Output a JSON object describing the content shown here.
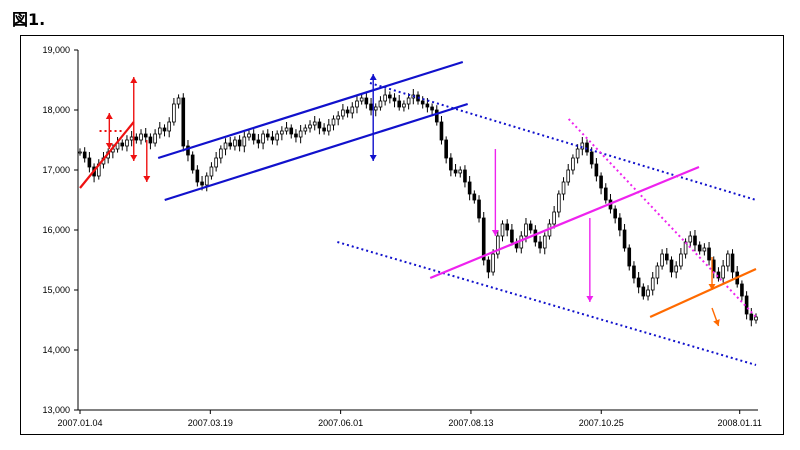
{
  "figure_label": "図1.",
  "chart_data": {
    "type": "candlestick",
    "title": "",
    "xlabel": "",
    "ylabel": "",
    "ylim": [
      13000,
      19000
    ],
    "y_ticks": [
      "13,000",
      "14,000",
      "15,000",
      "16,000",
      "17,000",
      "18,000",
      "19,000"
    ],
    "x_ticks": [
      "2007.01.04",
      "2007.03.19",
      "2007.06.01",
      "2007.08.13",
      "2007.10.25",
      "2008.01.11"
    ],
    "grid": false,
    "legend": "none",
    "series": [
      {
        "values": [
          17300,
          17200,
          17050,
          16900,
          17100,
          17200,
          17300,
          17350,
          17450,
          17400,
          17500,
          17550,
          17500,
          17600,
          17550,
          17450,
          17600,
          17700,
          17650,
          17800,
          18100,
          18200,
          17400,
          17250,
          17000,
          16800,
          16750,
          16900,
          17050,
          17200,
          17350,
          17450,
          17400,
          17500,
          17400,
          17550,
          17600,
          17500,
          17450,
          17600,
          17550,
          17500,
          17600,
          17650,
          17700,
          17600,
          17550,
          17650,
          17700,
          17750,
          17800,
          17700,
          17650,
          17750,
          17850,
          17900,
          18000,
          17950,
          18050,
          18150,
          18200,
          18100,
          18000,
          18050,
          18150,
          18250,
          18200,
          18150,
          18050,
          18100,
          18200,
          18250,
          18150,
          18100,
          18050,
          18000,
          17800,
          17500,
          17200,
          17000,
          16950,
          17000,
          16800,
          16600,
          16500,
          16200,
          15500,
          15300,
          15600,
          15900,
          16100,
          16000,
          15800,
          15700,
          15900,
          16100,
          16000,
          15800,
          15700,
          15900,
          16100,
          16300,
          16600,
          16800,
          17000,
          17200,
          17350,
          17450,
          17300,
          17100,
          16900,
          16700,
          16500,
          16350,
          16200,
          16000,
          15700,
          15400,
          15200,
          15050,
          14900,
          15000,
          15200,
          15400,
          15600,
          15500,
          15300,
          15400,
          15600,
          15800,
          15900,
          15750,
          15650,
          15700,
          15500,
          15300,
          15200,
          15400,
          15600,
          15300,
          15100,
          14900,
          14600,
          14500,
          14550
        ]
      }
    ],
    "annotations": {
      "trend_lines": [
        {
          "color": "#ee1111",
          "style": "solid",
          "from": [
            0,
            16700
          ],
          "to": [
            33,
            17800
          ]
        },
        {
          "color": "#ee1111",
          "style": "dotted",
          "from": [
            12,
            17650
          ],
          "to": [
            26,
            17650
          ]
        },
        {
          "color": "#1111cc",
          "style": "solid",
          "from": [
            48,
            17200
          ],
          "to": [
            235,
            18800
          ]
        },
        {
          "color": "#1111cc",
          "style": "solid",
          "from": [
            52,
            16500
          ],
          "to": [
            238,
            18100
          ]
        },
        {
          "color": "#1111cc",
          "style": "dotted",
          "from": [
            178,
            18450
          ],
          "to": [
            415,
            16500
          ]
        },
        {
          "color": "#1111cc",
          "style": "dotted",
          "from": [
            158,
            15800
          ],
          "to": [
            415,
            13750
          ]
        },
        {
          "color": "#ee22ee",
          "style": "solid",
          "from": [
            215,
            15200
          ],
          "to": [
            380,
            17050
          ]
        },
        {
          "color": "#ee22ee",
          "style": "dotted",
          "from": [
            300,
            17850
          ],
          "to": [
            415,
            14550
          ]
        },
        {
          "color": "#ff6a00",
          "style": "solid",
          "from": [
            350,
            14550
          ],
          "to": [
            415,
            15350
          ]
        }
      ],
      "arrows": [
        {
          "color": "#ee1111",
          "from": [
            33,
            17850
          ],
          "to": [
            33,
            18550
          ]
        },
        {
          "color": "#ee1111",
          "from": [
            33,
            17850
          ],
          "to": [
            33,
            17150
          ]
        },
        {
          "color": "#ee1111",
          "from": [
            18,
            17650
          ],
          "to": [
            18,
            17950
          ]
        },
        {
          "color": "#ee1111",
          "from": [
            18,
            17650
          ],
          "to": [
            18,
            17350
          ]
        },
        {
          "color": "#ee1111",
          "from": [
            41,
            17500
          ],
          "to": [
            41,
            16800
          ]
        },
        {
          "color": "#1111cc",
          "from": [
            180,
            17800
          ],
          "to": [
            180,
            18600
          ]
        },
        {
          "color": "#1111cc",
          "from": [
            180,
            17800
          ],
          "to": [
            180,
            17150
          ]
        },
        {
          "color": "#ee22ee",
          "from": [
            255,
            17350
          ],
          "to": [
            255,
            15900
          ]
        },
        {
          "color": "#ee22ee",
          "from": [
            313,
            16200
          ],
          "to": [
            313,
            14800
          ]
        },
        {
          "color": "#ff6a00",
          "from": [
            388,
            15550
          ],
          "to": [
            388,
            15000
          ]
        },
        {
          "color": "#ff6a00",
          "from": [
            388,
            14700
          ],
          "to": [
            392,
            14400
          ]
        }
      ]
    }
  }
}
